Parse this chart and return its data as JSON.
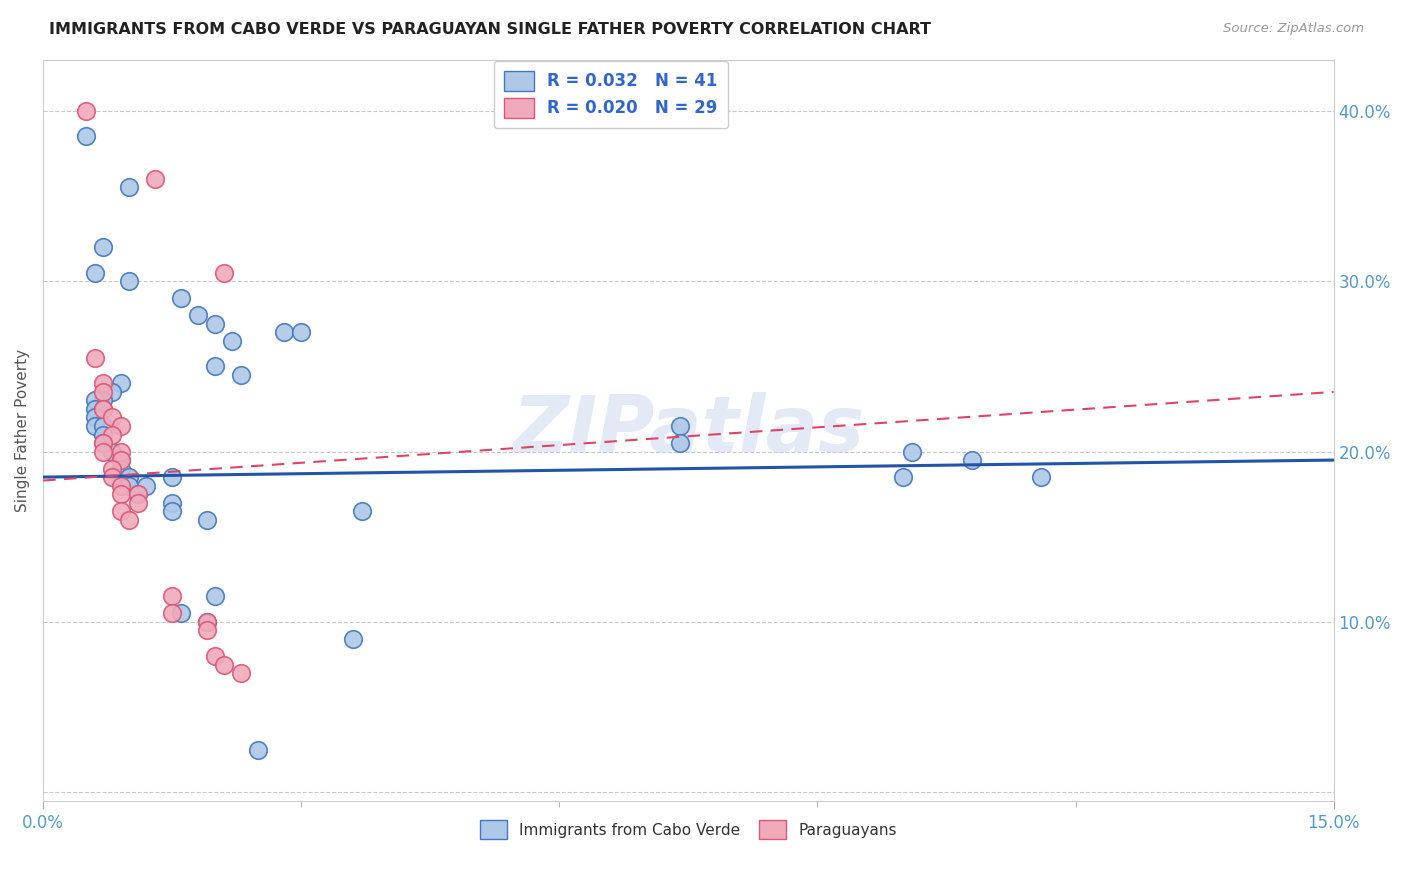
{
  "title": "IMMIGRANTS FROM CABO VERDE VS PARAGUAYAN SINGLE FATHER POVERTY CORRELATION CHART",
  "source": "Source: ZipAtlas.com",
  "ylabel": "Single Father Poverty",
  "xlim": [
    0.0,
    0.15
  ],
  "ylim": [
    -0.005,
    0.43
  ],
  "yticks": [
    0.0,
    0.1,
    0.2,
    0.3,
    0.4
  ],
  "ytick_labels": [
    "",
    "10.0%",
    "20.0%",
    "30.0%",
    "40.0%"
  ],
  "legend_label1": "Immigrants from Cabo Verde",
  "legend_label2": "Paraguayans",
  "blue_color": "#aec8e8",
  "pink_color": "#f0aabb",
  "blue_edge_color": "#4477bb",
  "pink_edge_color": "#dd5577",
  "blue_line_color": "#2255aa",
  "pink_line_color": "#dd4466",
  "blue_scatter": [
    [
      0.005,
      0.385
    ],
    [
      0.01,
      0.355
    ],
    [
      0.007,
      0.32
    ],
    [
      0.006,
      0.305
    ],
    [
      0.01,
      0.3
    ],
    [
      0.016,
      0.29
    ],
    [
      0.018,
      0.28
    ],
    [
      0.02,
      0.275
    ],
    [
      0.028,
      0.27
    ],
    [
      0.022,
      0.265
    ],
    [
      0.03,
      0.27
    ],
    [
      0.02,
      0.25
    ],
    [
      0.023,
      0.245
    ],
    [
      0.009,
      0.24
    ],
    [
      0.008,
      0.235
    ],
    [
      0.007,
      0.23
    ],
    [
      0.006,
      0.23
    ],
    [
      0.006,
      0.225
    ],
    [
      0.007,
      0.225
    ],
    [
      0.006,
      0.22
    ],
    [
      0.006,
      0.215
    ],
    [
      0.007,
      0.215
    ],
    [
      0.007,
      0.21
    ],
    [
      0.007,
      0.205
    ],
    [
      0.008,
      0.2
    ],
    [
      0.008,
      0.2
    ],
    [
      0.009,
      0.195
    ],
    [
      0.009,
      0.19
    ],
    [
      0.01,
      0.185
    ],
    [
      0.015,
      0.185
    ],
    [
      0.01,
      0.18
    ],
    [
      0.011,
      0.175
    ],
    [
      0.012,
      0.18
    ],
    [
      0.015,
      0.17
    ],
    [
      0.015,
      0.165
    ],
    [
      0.019,
      0.16
    ],
    [
      0.02,
      0.115
    ],
    [
      0.016,
      0.105
    ],
    [
      0.019,
      0.1
    ],
    [
      0.074,
      0.215
    ],
    [
      0.074,
      0.205
    ],
    [
      0.101,
      0.2
    ],
    [
      0.108,
      0.195
    ],
    [
      0.1,
      0.185
    ],
    [
      0.116,
      0.185
    ],
    [
      0.025,
      0.025
    ],
    [
      0.037,
      0.165
    ],
    [
      0.036,
      0.09
    ]
  ],
  "pink_scatter": [
    [
      0.005,
      0.4
    ],
    [
      0.013,
      0.36
    ],
    [
      0.021,
      0.305
    ],
    [
      0.006,
      0.255
    ],
    [
      0.007,
      0.24
    ],
    [
      0.007,
      0.235
    ],
    [
      0.007,
      0.225
    ],
    [
      0.008,
      0.22
    ],
    [
      0.009,
      0.215
    ],
    [
      0.008,
      0.21
    ],
    [
      0.007,
      0.205
    ],
    [
      0.007,
      0.2
    ],
    [
      0.009,
      0.2
    ],
    [
      0.009,
      0.195
    ],
    [
      0.008,
      0.19
    ],
    [
      0.008,
      0.185
    ],
    [
      0.009,
      0.18
    ],
    [
      0.009,
      0.175
    ],
    [
      0.011,
      0.175
    ],
    [
      0.011,
      0.17
    ],
    [
      0.009,
      0.165
    ],
    [
      0.01,
      0.16
    ],
    [
      0.015,
      0.115
    ],
    [
      0.015,
      0.105
    ],
    [
      0.019,
      0.1
    ],
    [
      0.019,
      0.095
    ],
    [
      0.02,
      0.08
    ],
    [
      0.021,
      0.075
    ],
    [
      0.023,
      0.07
    ]
  ],
  "blue_line_x0": 0.0,
  "blue_line_y0": 0.185,
  "blue_line_x1": 0.15,
  "blue_line_y1": 0.195,
  "pink_line_x0": 0.0,
  "pink_line_y0": 0.183,
  "pink_line_x1": 0.15,
  "pink_line_y1": 0.235,
  "background_color": "#ffffff",
  "grid_color": "#cccccc"
}
